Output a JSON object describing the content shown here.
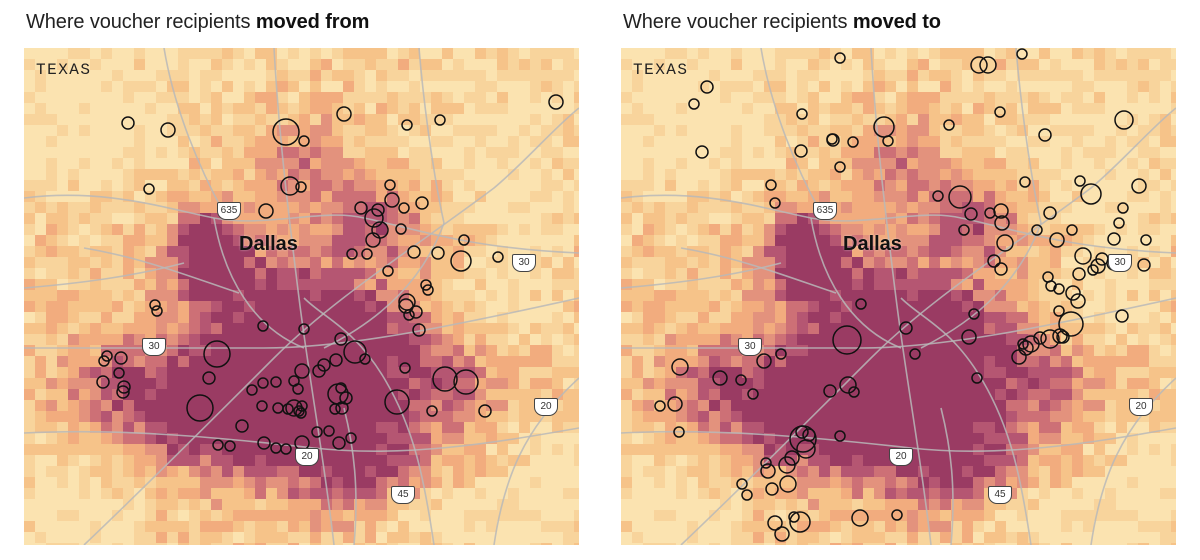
{
  "colors": {
    "choropleth": [
      "#fbe3b0",
      "#f8d49c",
      "#f6c389",
      "#f2ac7e",
      "#e3927d",
      "#cd7076",
      "#b55672",
      "#9a3b63"
    ],
    "road": "#b9b9b9",
    "circle_stroke": "#111111"
  },
  "panels": [
    {
      "title_prefix": "Where voucher recipients ",
      "title_bold": "moved from",
      "state_label": "TEXAS",
      "city_label": "Dallas",
      "highways": [
        {
          "label": "635"
        },
        {
          "label": "30"
        },
        {
          "label": "30"
        },
        {
          "label": "20"
        },
        {
          "label": "20"
        },
        {
          "label": "45"
        }
      ],
      "circle_count": 93
    },
    {
      "title_prefix": "Where voucher recipients ",
      "title_bold": "moved to",
      "state_label": "TEXAS",
      "city_label": "Dallas",
      "highways": [
        {
          "label": "635"
        },
        {
          "label": "30"
        },
        {
          "label": "30"
        },
        {
          "label": "20"
        },
        {
          "label": "20"
        },
        {
          "label": "45"
        }
      ],
      "circle_count": 104
    }
  ]
}
